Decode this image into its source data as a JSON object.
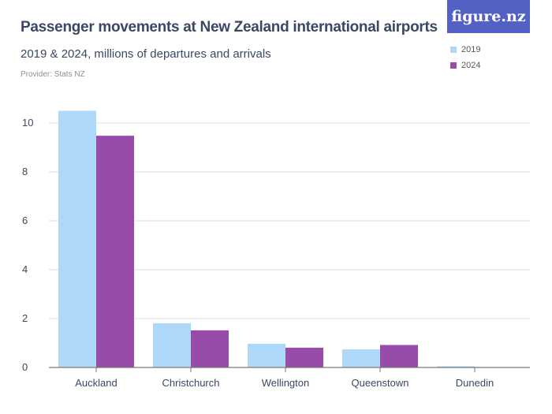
{
  "chart_data": {
    "type": "bar",
    "title": "Passenger movements at New Zealand international airports",
    "subtitle": "2019 & 2024, millions of departures and arrivals",
    "provider": "Provider: Stats NZ",
    "logo": "figure.nz",
    "categories": [
      "Auckland",
      "Christchurch",
      "Wellington",
      "Queenstown",
      "Dunedin"
    ],
    "series": [
      {
        "name": "2019",
        "color": "#add8fa",
        "values": [
          10.5,
          1.81,
          0.97,
          0.74,
          0.05
        ]
      },
      {
        "name": "2024",
        "color": "#984ca9",
        "values": [
          9.48,
          1.52,
          0.81,
          0.92,
          0
        ]
      }
    ],
    "yticks": [
      0,
      2,
      4,
      6,
      8,
      10
    ],
    "ylim": [
      0,
      11
    ],
    "xlabel": "",
    "ylabel": "",
    "grid": true,
    "legend": "top-right"
  }
}
